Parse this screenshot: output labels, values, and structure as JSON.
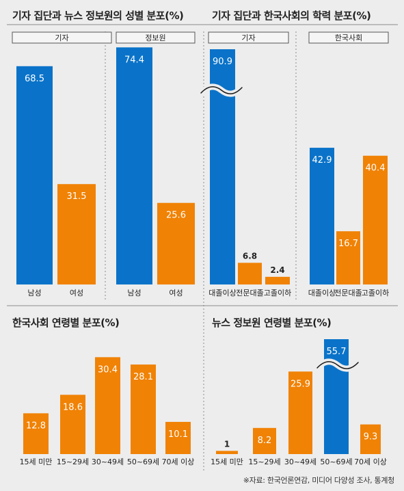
{
  "colors": {
    "blue": "#0a73c9",
    "orange": "#f08205",
    "grid": "#8c8c8c",
    "text": "#222222",
    "bg": "#ededed"
  },
  "titles": {
    "gender": "기자 집단과 뉴스 정보원의 성별 분포(%)",
    "education": "기자 집단과 한국사회의 학력 분포(%)",
    "korea_age": "한국사회 연령별 분포(%)",
    "source_age": "뉴스 정보원 연령별 분포(%)"
  },
  "source_note": "※자료: 한국언론연감, 미디어 다양성 조사, 통계청",
  "chart_data": [
    {
      "id": "gender-journalist",
      "type": "bar",
      "group_label": "기자",
      "categories": [
        "남성",
        "여성"
      ],
      "values": [
        68.5,
        31.5
      ],
      "value_labels": [
        "68.5",
        "31.5"
      ],
      "colors": [
        "#0a73c9",
        "#f08205"
      ],
      "ylim": [
        0,
        100
      ]
    },
    {
      "id": "gender-source",
      "type": "bar",
      "group_label": "정보원",
      "categories": [
        "남성",
        "여성"
      ],
      "values": [
        74.4,
        25.6
      ],
      "value_labels": [
        "74.4",
        "25.6"
      ],
      "colors": [
        "#0a73c9",
        "#f08205"
      ],
      "ylim": [
        0,
        100
      ]
    },
    {
      "id": "edu-journalist",
      "type": "bar",
      "group_label": "기자",
      "categories": [
        "대졸이상",
        "전문대졸",
        "고졸이하"
      ],
      "values": [
        90.9,
        6.8,
        2.4
      ],
      "value_labels": [
        "90.9",
        "6.8",
        "2.4"
      ],
      "colors": [
        "#0a73c9",
        "#f08205",
        "#f08205"
      ],
      "ylim": [
        0,
        100
      ],
      "axis_break": true
    },
    {
      "id": "edu-korea",
      "type": "bar",
      "group_label": "한국사회",
      "categories": [
        "대졸이상",
        "전문대졸",
        "고졸이하"
      ],
      "values": [
        42.9,
        16.7,
        40.4
      ],
      "value_labels": [
        "42.9",
        "16.7",
        "40.4"
      ],
      "colors": [
        "#0a73c9",
        "#f08205",
        "#f08205"
      ],
      "ylim": [
        0,
        100
      ]
    },
    {
      "id": "age-korea",
      "type": "bar",
      "categories": [
        "15세 미만",
        "15~29세",
        "30~49세",
        "50~69세",
        "70세 이상"
      ],
      "values": [
        12.8,
        18.6,
        30.4,
        28.1,
        10.1
      ],
      "value_labels": [
        "12.8",
        "18.6",
        "30.4",
        "28.1",
        "10.1"
      ],
      "colors": [
        "#f08205",
        "#f08205",
        "#f08205",
        "#f08205",
        "#f08205"
      ],
      "ylim": [
        0,
        32
      ]
    },
    {
      "id": "age-source",
      "type": "bar",
      "categories": [
        "15세 미만",
        "15~29세",
        "30~49세",
        "50~69세",
        "70세 이상"
      ],
      "values": [
        1,
        8.2,
        25.9,
        55.7,
        9.3
      ],
      "value_labels": [
        "1",
        "8.2",
        "25.9",
        "55.7",
        "9.3"
      ],
      "colors": [
        "#f08205",
        "#f08205",
        "#f08205",
        "#0a73c9",
        "#f08205"
      ],
      "ylim": [
        0,
        32
      ],
      "axis_break": true
    }
  ]
}
